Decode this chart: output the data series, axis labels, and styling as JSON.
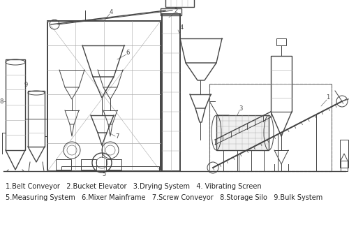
{
  "bg_color": "#ffffff",
  "line_color": "#555555",
  "caption_line1": "1.Belt Conveyor   2.Bucket Elevator   3.Drying System   4. Vibrating Screen",
  "caption_line2": "5.Measuring System   6.Mixer Mainframe   7.Screw Conveyor   8.Storage Silo   9.Bulk System",
  "caption_fontsize": 7.0,
  "caption_color": "#222222",
  "figsize": [
    5.0,
    3.35
  ],
  "dpi": 100
}
